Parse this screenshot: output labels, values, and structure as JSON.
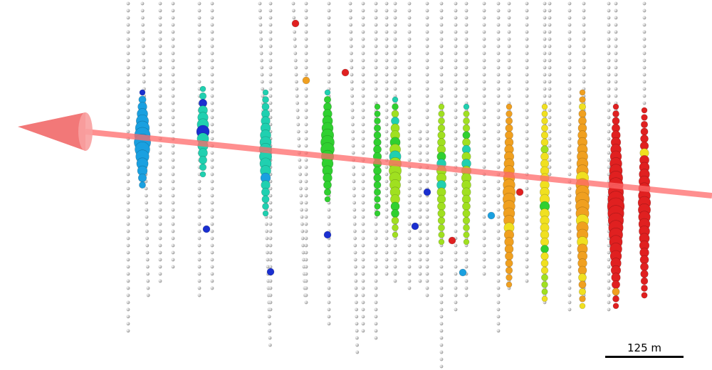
{
  "scale_bar": {
    "label": "125 m"
  },
  "colors": {
    "dom": "#d8d8d8",
    "track": "#ff6a6a",
    "cone": "#f06060",
    "hit_gradient_early_to_late": [
      "#1a2fd0",
      "#1aa0e0",
      "#20d0b0",
      "#30d030",
      "#a0e020",
      "#f0e020",
      "#f0a020",
      "#e02020"
    ]
  }
}
